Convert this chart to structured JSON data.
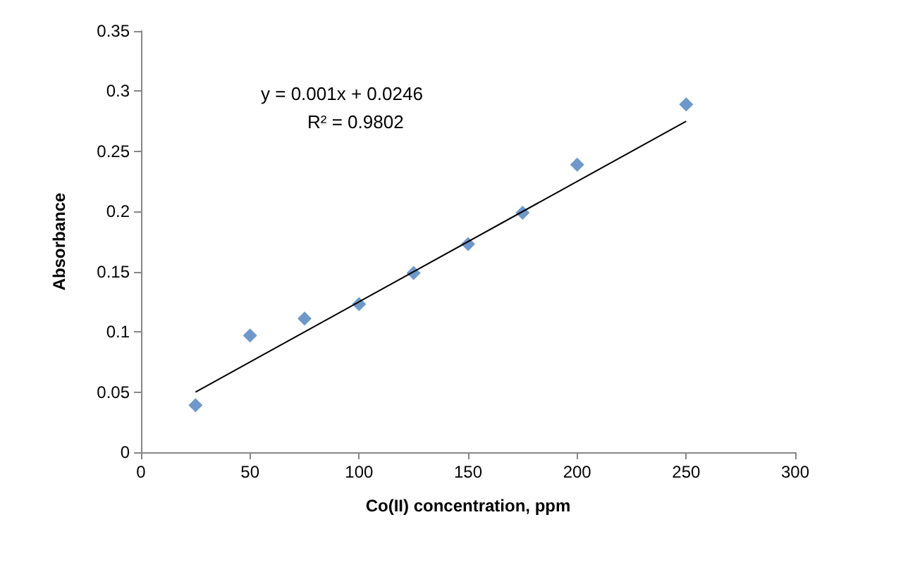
{
  "chart_data": {
    "type": "scatter",
    "xlabel": "Co(II) concentration, ppm",
    "ylabel": "Absorbance",
    "annotations": [
      "y = 0.001x + 0.0246",
      "R² = 0.9802"
    ],
    "xlim": [
      0,
      300
    ],
    "xticks": [
      0,
      50,
      100,
      150,
      200,
      250,
      300
    ],
    "ylim": [
      0,
      0.35
    ],
    "yticks": [
      0,
      0.05,
      0.1,
      0.15,
      0.2,
      0.25,
      0.3,
      0.35
    ],
    "grid": false,
    "marker": "diamond",
    "series": [
      {
        "color": "#4a7ebb",
        "x": [
          25,
          50,
          75,
          100,
          125,
          150,
          175,
          200,
          250
        ],
        "values": [
          0.039,
          0.097,
          0.111,
          0.123,
          0.149,
          0.173,
          0.199,
          0.239,
          0.289
        ]
      },
      {
        "type": "line",
        "color": "#000000",
        "marker": "none",
        "line_style": "solid",
        "x": [
          25,
          250
        ],
        "values": [
          0.05,
          0.275
        ]
      }
    ]
  }
}
